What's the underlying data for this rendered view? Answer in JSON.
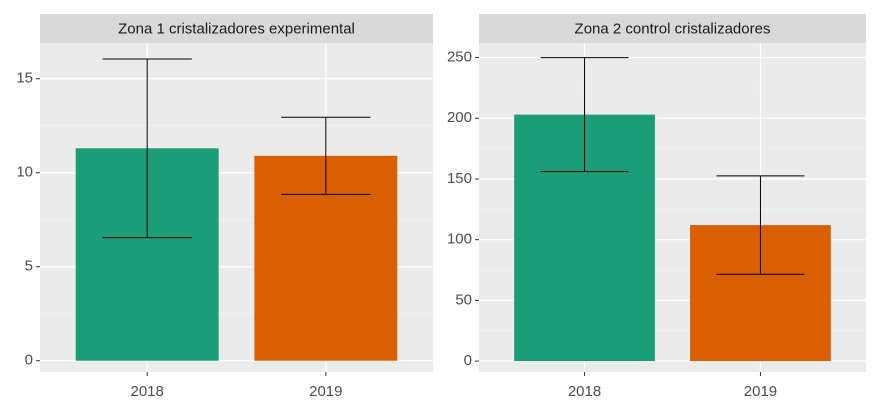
{
  "chart_data": [
    {
      "type": "bar",
      "title": "Zona 1 cristalizadores experimental",
      "categories": [
        "2018",
        "2019"
      ],
      "values": [
        11.3,
        10.9
      ],
      "errors": [
        4.75,
        2.05
      ],
      "colors": [
        "#1b9e77",
        "#d95f02"
      ],
      "ylim": [
        -0.6,
        16.9
      ],
      "yticks": [
        0,
        5,
        10,
        15
      ],
      "grid": true
    },
    {
      "type": "bar",
      "title": "Zona 2 control cristalizadores",
      "categories": [
        "2018",
        "2019"
      ],
      "values": [
        203,
        112
      ],
      "errors": [
        47,
        40.5
      ],
      "colors": [
        "#1b9e77",
        "#d95f02"
      ],
      "ylim": [
        -9,
        262
      ],
      "yticks": [
        0,
        50,
        100,
        150,
        200,
        250
      ],
      "grid": true
    }
  ]
}
